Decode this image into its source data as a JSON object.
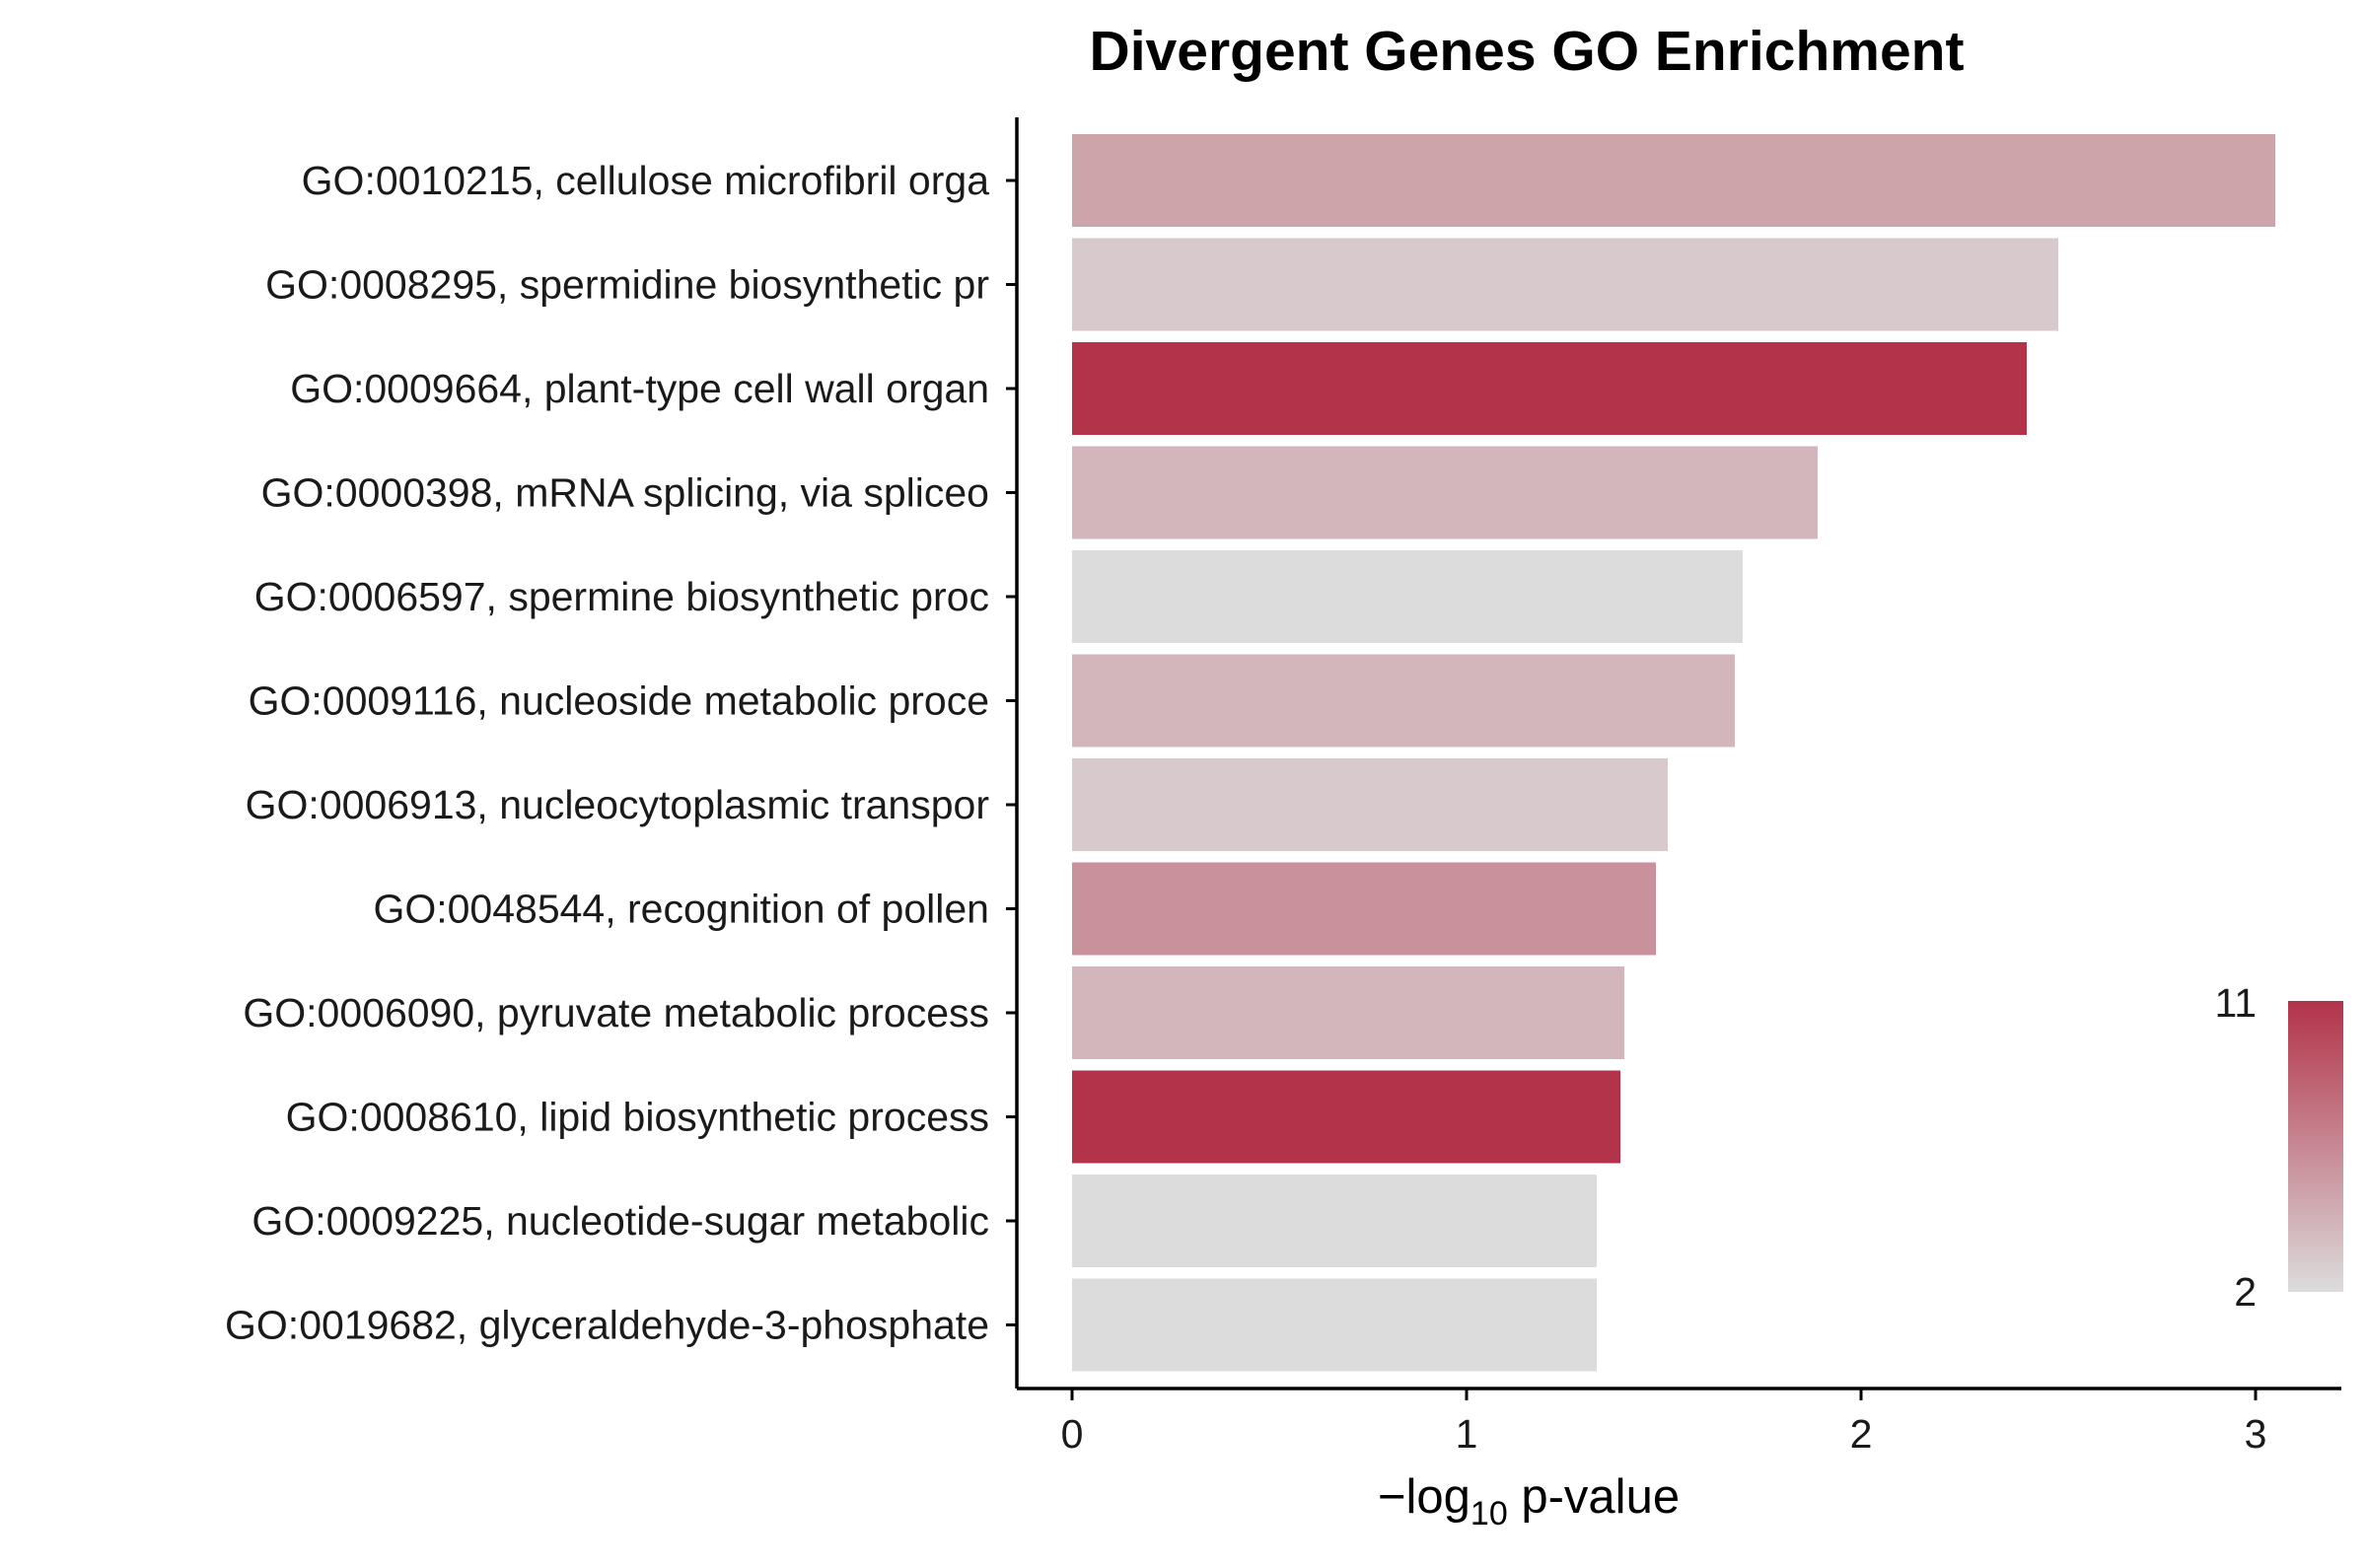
{
  "chart_data": {
    "type": "bar",
    "orientation": "horizontal",
    "title": "Divergent Genes GO Enrichment",
    "xlabel": {
      "prefix": "−log",
      "subscript": "10",
      "suffix": " p-value"
    },
    "ylabel": "",
    "xlim": [
      0,
      3.2
    ],
    "xticks": [
      0,
      1,
      2,
      3
    ],
    "grid": false,
    "legend": {
      "type": "colorbar",
      "placement": "right",
      "min": 2,
      "max": 11,
      "min_label": "2",
      "max_label": "11",
      "color_low": "#dcdcdc",
      "color_high": "#b2334a"
    },
    "categories": [
      "GO:0010215, cellulose microfibril orga",
      "GO:0008295, spermidine biosynthetic pr",
      "GO:0009664, plant-type cell wall organ",
      "GO:0000398, mRNA splicing, via spliceo",
      "GO:0006597, spermine biosynthetic proc",
      "GO:0009116, nucleoside metabolic proce",
      "GO:0006913, nucleocytoplasmic transpor",
      "GO:0048544, recognition of pollen",
      "GO:0006090, pyruvate metabolic process",
      "GO:0008610, lipid biosynthetic process",
      "GO:0009225, nucleotide-sugar metabolic",
      "GO:0019682, glyceraldehyde-3-phosphate"
    ],
    "values": [
      3.05,
      2.5,
      2.42,
      1.89,
      1.7,
      1.68,
      1.51,
      1.48,
      1.4,
      1.39,
      1.33,
      1.33
    ],
    "color_values": [
      5,
      3,
      11,
      4,
      2,
      4,
      3,
      6,
      4,
      11,
      2,
      2
    ]
  }
}
